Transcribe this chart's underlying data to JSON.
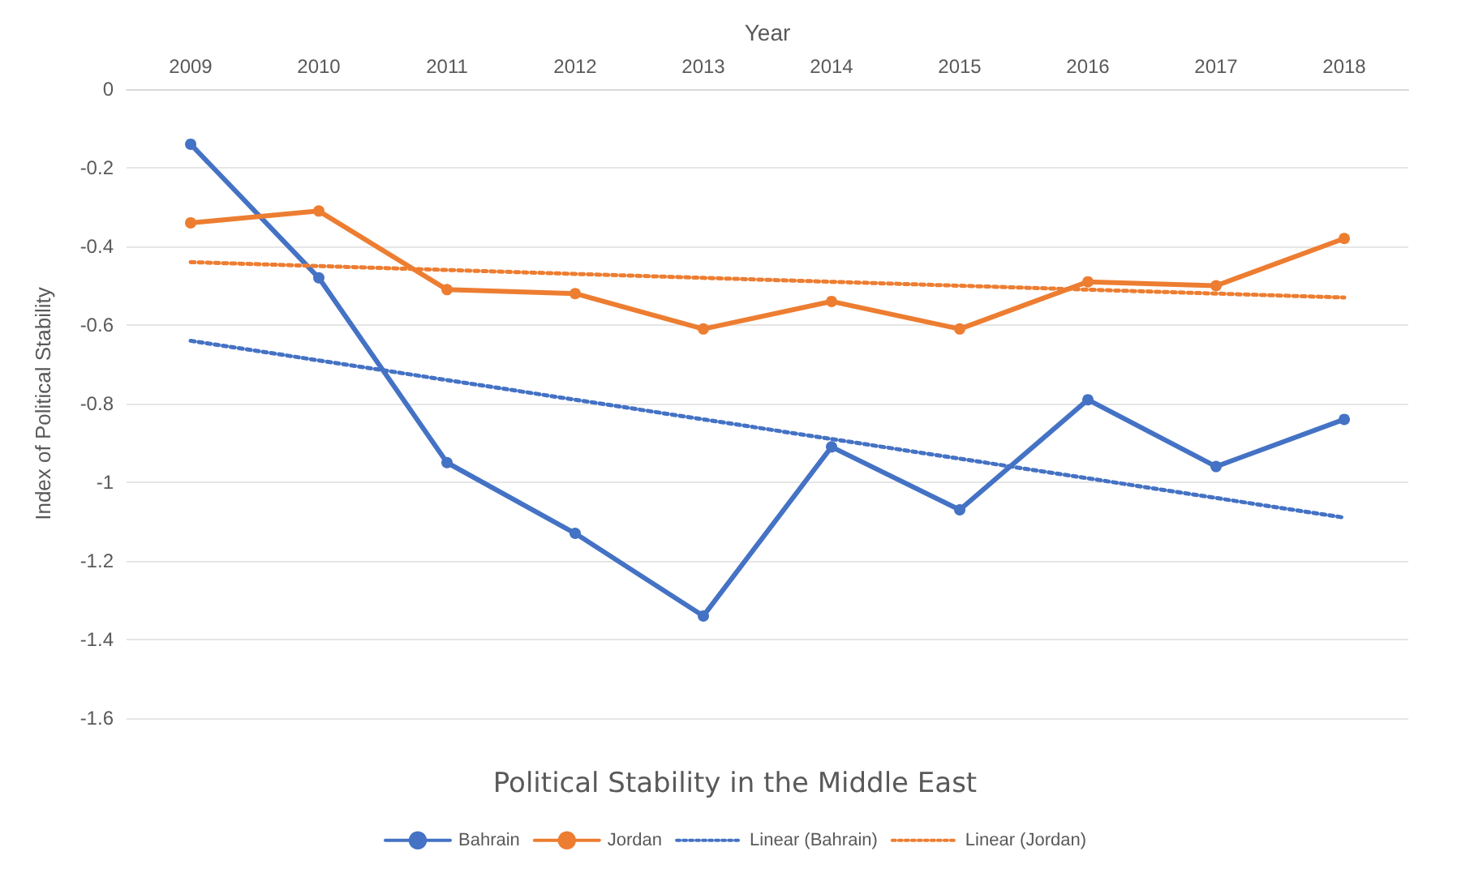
{
  "chart_data": {
    "type": "line",
    "title": "Political Stability in the Middle East",
    "xlabel": "Year",
    "ylabel": "Index of Political Stability",
    "categories": [
      "2009",
      "2010",
      "2011",
      "2012",
      "2013",
      "2014",
      "2015",
      "2016",
      "2017",
      "2018"
    ],
    "series": [
      {
        "name": "Bahrain",
        "color": "#4472c4",
        "values": [
          -0.14,
          -0.48,
          -0.95,
          -1.13,
          -1.34,
          -0.91,
          -1.07,
          -0.79,
          -0.96,
          -0.84
        ]
      },
      {
        "name": "Jordan",
        "color": "#ed7d31",
        "values": [
          -0.34,
          -0.31,
          -0.51,
          -0.52,
          -0.61,
          -0.54,
          -0.61,
          -0.49,
          -0.5,
          -0.38
        ]
      },
      {
        "name": "Linear (Bahrain)",
        "color": "#4472c4",
        "values": [
          -0.64,
          -0.69,
          -0.74,
          -0.79,
          -0.84,
          -0.89,
          -0.94,
          -0.99,
          -1.04,
          -1.09
        ],
        "line_style": "dotted",
        "marker": "none"
      },
      {
        "name": "Linear (Jordan)",
        "color": "#ed7d31",
        "values": [
          -0.44,
          -0.45,
          -0.46,
          -0.47,
          -0.48,
          -0.49,
          -0.5,
          -0.51,
          -0.52,
          -0.53
        ],
        "line_style": "dotted",
        "marker": "none"
      }
    ],
    "ylim": [
      -1.6,
      0
    ],
    "yticks": [
      0,
      -0.2,
      -0.4,
      -0.6,
      -0.8,
      -1,
      -1.2,
      -1.4,
      -1.6
    ],
    "grid": "y",
    "legend": "bottom",
    "marker": "circle",
    "line_style": "solid"
  }
}
